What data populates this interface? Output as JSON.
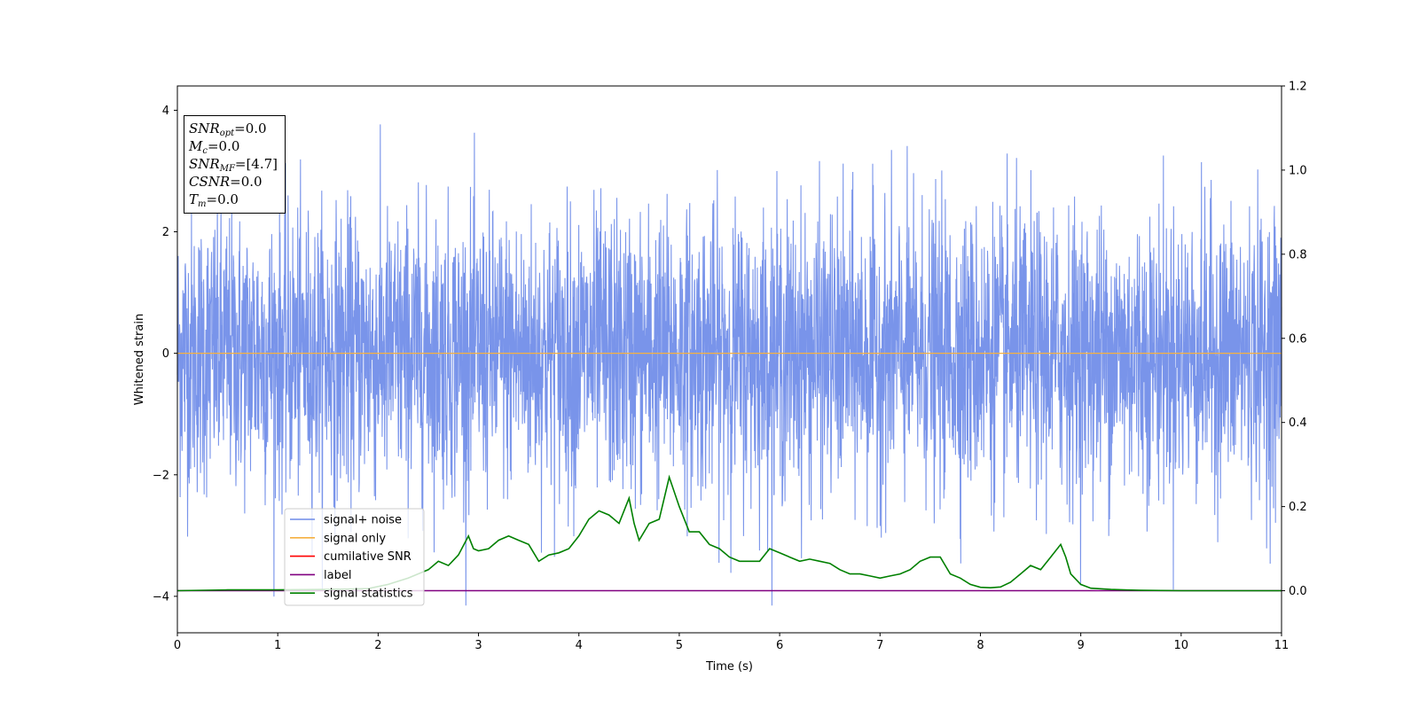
{
  "chart_data": {
    "type": "line",
    "xlabel": "Time (s)",
    "ylabel": "Whitened strain",
    "xlim": [
      0,
      11
    ],
    "ylim": [
      -4.6,
      4.4
    ],
    "y2lim": [
      -0.1,
      1.2
    ],
    "x_ticks": [
      "0",
      "1",
      "2",
      "3",
      "4",
      "5",
      "6",
      "7",
      "8",
      "9",
      "10",
      "11"
    ],
    "y_ticks": [
      "4",
      "2",
      "0",
      "−2",
      "−4"
    ],
    "y2_ticks": [
      "1.2",
      "1.0",
      "0.8",
      "0.6",
      "0.4",
      "0.2",
      "0.0"
    ],
    "legend_position": "lower-left",
    "series": [
      {
        "name": "signal+ noise",
        "color": "#6e8be8",
        "axis": "left",
        "description_range": [
          -4.2,
          4.0
        ],
        "typical_envelope": [
          -2.6,
          2.8
        ]
      },
      {
        "name": "signal only",
        "color": "#f5b041",
        "axis": "left",
        "x": [
          0,
          11
        ],
        "y": [
          0,
          0
        ]
      },
      {
        "name": "cumilative SNR",
        "color": "#ff0000",
        "axis": "right",
        "x": [],
        "y": []
      },
      {
        "name": "label",
        "color": "#800080",
        "axis": "right",
        "x": [
          0,
          11
        ],
        "y": [
          0,
          0
        ]
      },
      {
        "name": "signal statistics",
        "color": "#008000",
        "axis": "right",
        "x": [
          0,
          0.5,
          1.0,
          1.5,
          1.9,
          2.1,
          2.3,
          2.5,
          2.6,
          2.7,
          2.8,
          2.9,
          2.95,
          3.0,
          3.1,
          3.2,
          3.3,
          3.4,
          3.5,
          3.6,
          3.7,
          3.8,
          3.9,
          4.0,
          4.1,
          4.2,
          4.3,
          4.4,
          4.5,
          4.55,
          4.6,
          4.7,
          4.8,
          4.9,
          5.0,
          5.1,
          5.2,
          5.3,
          5.4,
          5.5,
          5.6,
          5.7,
          5.8,
          5.9,
          6.0,
          6.1,
          6.2,
          6.3,
          6.4,
          6.5,
          6.6,
          6.7,
          6.8,
          6.9,
          7.0,
          7.1,
          7.2,
          7.3,
          7.4,
          7.5,
          7.6,
          7.7,
          7.8,
          7.9,
          8.0,
          8.1,
          8.2,
          8.3,
          8.4,
          8.5,
          8.6,
          8.7,
          8.8,
          8.85,
          8.9,
          9.0,
          9.1,
          9.3,
          9.6,
          10.0,
          10.5,
          11.0
        ],
        "y": [
          0.0,
          0.002,
          0.002,
          0.003,
          0.005,
          0.015,
          0.03,
          0.05,
          0.07,
          0.06,
          0.085,
          0.13,
          0.1,
          0.095,
          0.1,
          0.12,
          0.13,
          0.12,
          0.11,
          0.07,
          0.085,
          0.09,
          0.1,
          0.13,
          0.17,
          0.19,
          0.18,
          0.16,
          0.22,
          0.16,
          0.12,
          0.16,
          0.17,
          0.27,
          0.2,
          0.14,
          0.14,
          0.11,
          0.1,
          0.08,
          0.07,
          0.07,
          0.07,
          0.1,
          0.09,
          0.08,
          0.07,
          0.075,
          0.07,
          0.065,
          0.05,
          0.04,
          0.04,
          0.035,
          0.03,
          0.035,
          0.04,
          0.05,
          0.07,
          0.08,
          0.08,
          0.04,
          0.03,
          0.015,
          0.008,
          0.007,
          0.009,
          0.02,
          0.04,
          0.06,
          0.05,
          0.08,
          0.11,
          0.08,
          0.04,
          0.015,
          0.006,
          0.003,
          0.001,
          0.0,
          0.0,
          0.0
        ]
      }
    ]
  },
  "info_box": {
    "snr_opt_label": "SNR",
    "snr_opt_sub": "opt",
    "snr_opt_value": "=0.0",
    "mc_label": "M",
    "mc_sub": "c",
    "mc_value": "=0.0",
    "snr_mf_label": "SNR",
    "snr_mf_sub": "MF",
    "snr_mf_value": "=[4.7]",
    "csnr_label": "CSNR",
    "csnr_value": "=0.0",
    "tm_label": "T",
    "tm_sub": "m",
    "tm_value": "=0.0"
  }
}
